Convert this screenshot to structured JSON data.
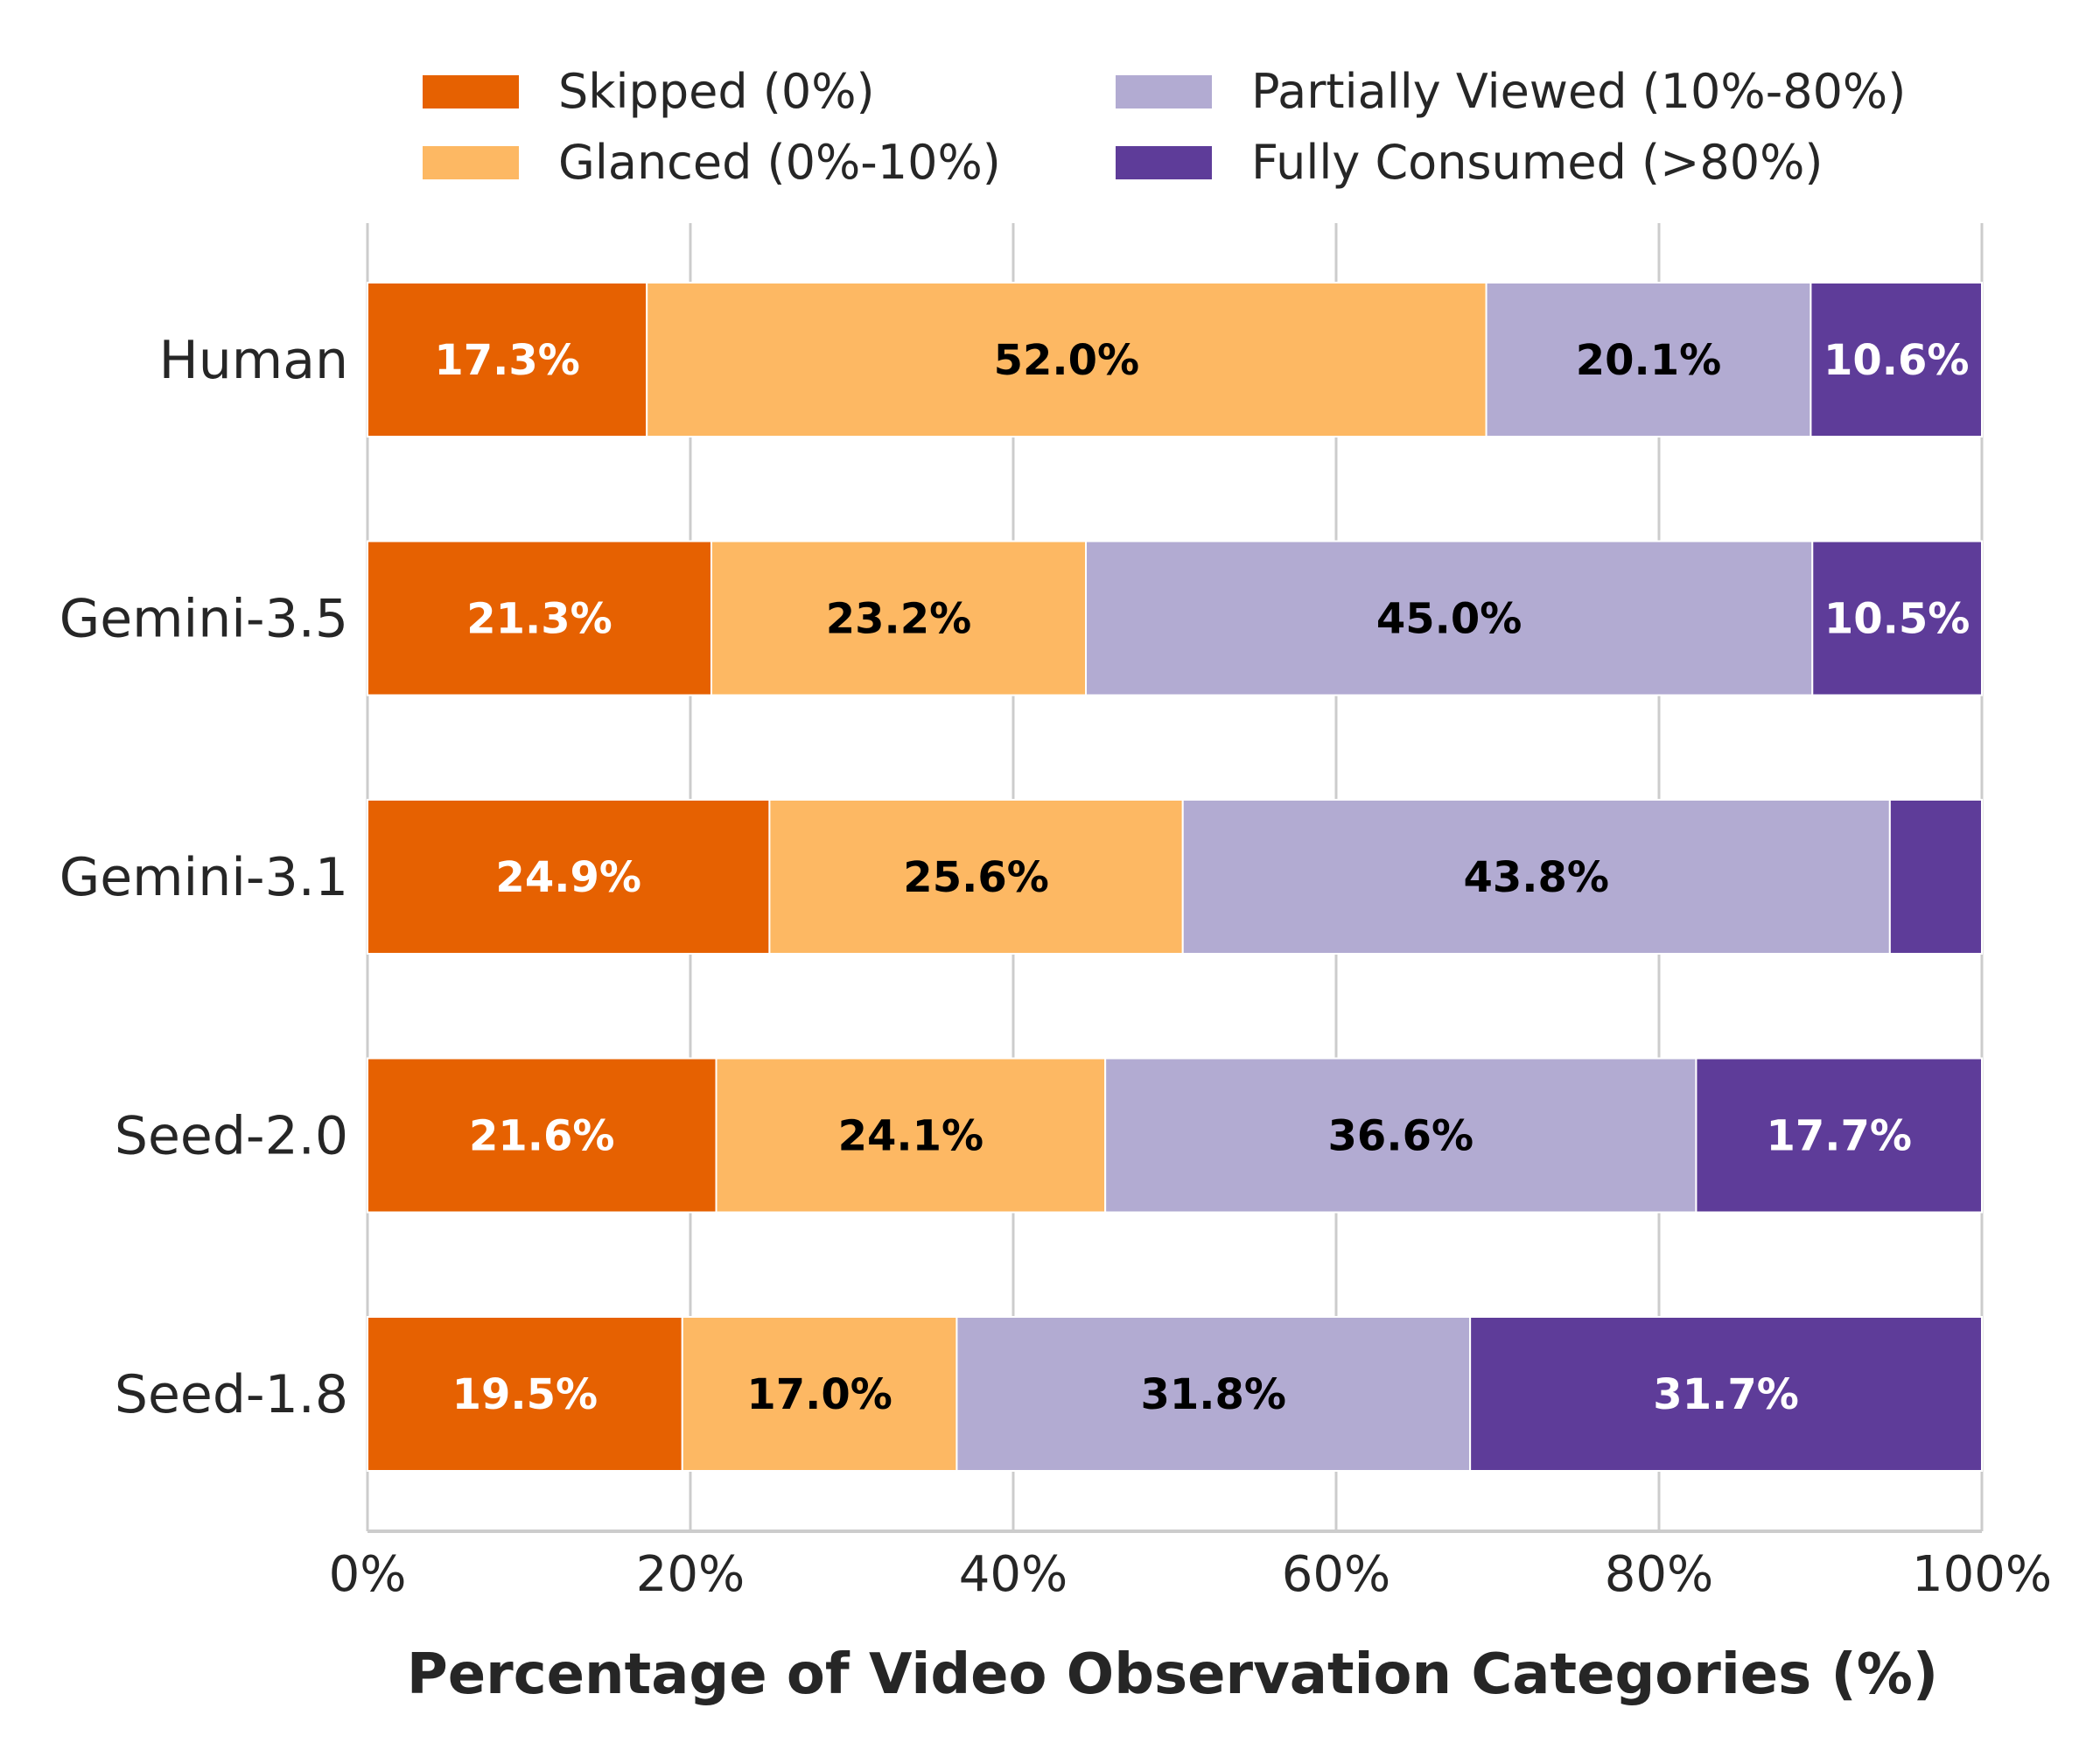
{
  "chart_data": {
    "type": "bar",
    "orientation": "horizontal",
    "stacked": true,
    "title": "",
    "xlabel": "Percentage of Video Observation Categories (%)",
    "ylabel": "",
    "xlim": [
      0,
      100
    ],
    "x_ticks": [
      "0%",
      "20%",
      "40%",
      "60%",
      "80%",
      "100%"
    ],
    "grid": "vertical",
    "legend_position": "top",
    "categories": [
      "Human",
      "Gemini-3.5",
      "Gemini-3.1",
      "Seed-2.0",
      "Seed-1.8"
    ],
    "series": [
      {
        "name": "Skipped (0%)",
        "color": "#e66101",
        "label_color": "#ffffff",
        "values": [
          17.3,
          21.3,
          24.9,
          21.6,
          19.5
        ],
        "labels": [
          "17.3%",
          "21.3%",
          "24.9%",
          "21.6%",
          "19.5%"
        ]
      },
      {
        "name": "Glanced (0%-10%)",
        "color": "#fdb863",
        "label_color": "#000000",
        "values": [
          52.0,
          23.2,
          25.6,
          24.1,
          17.0
        ],
        "labels": [
          "52.0%",
          "23.2%",
          "25.6%",
          "24.1%",
          "17.0%"
        ]
      },
      {
        "name": "Partially Viewed (10%-80%)",
        "color": "#b2abd2",
        "label_color": "#000000",
        "values": [
          20.1,
          45.0,
          43.8,
          36.6,
          31.8
        ],
        "labels": [
          "20.1%",
          "45.0%",
          "43.8%",
          "36.6%",
          "31.8%"
        ]
      },
      {
        "name": "Fully Consumed (>80%)",
        "color": "#5e3c99",
        "label_color": "#ffffff",
        "values": [
          10.6,
          10.5,
          5.7,
          17.7,
          31.7
        ],
        "labels": [
          "10.6%",
          "10.5%",
          "",
          "17.7%",
          "31.7%"
        ]
      }
    ]
  }
}
